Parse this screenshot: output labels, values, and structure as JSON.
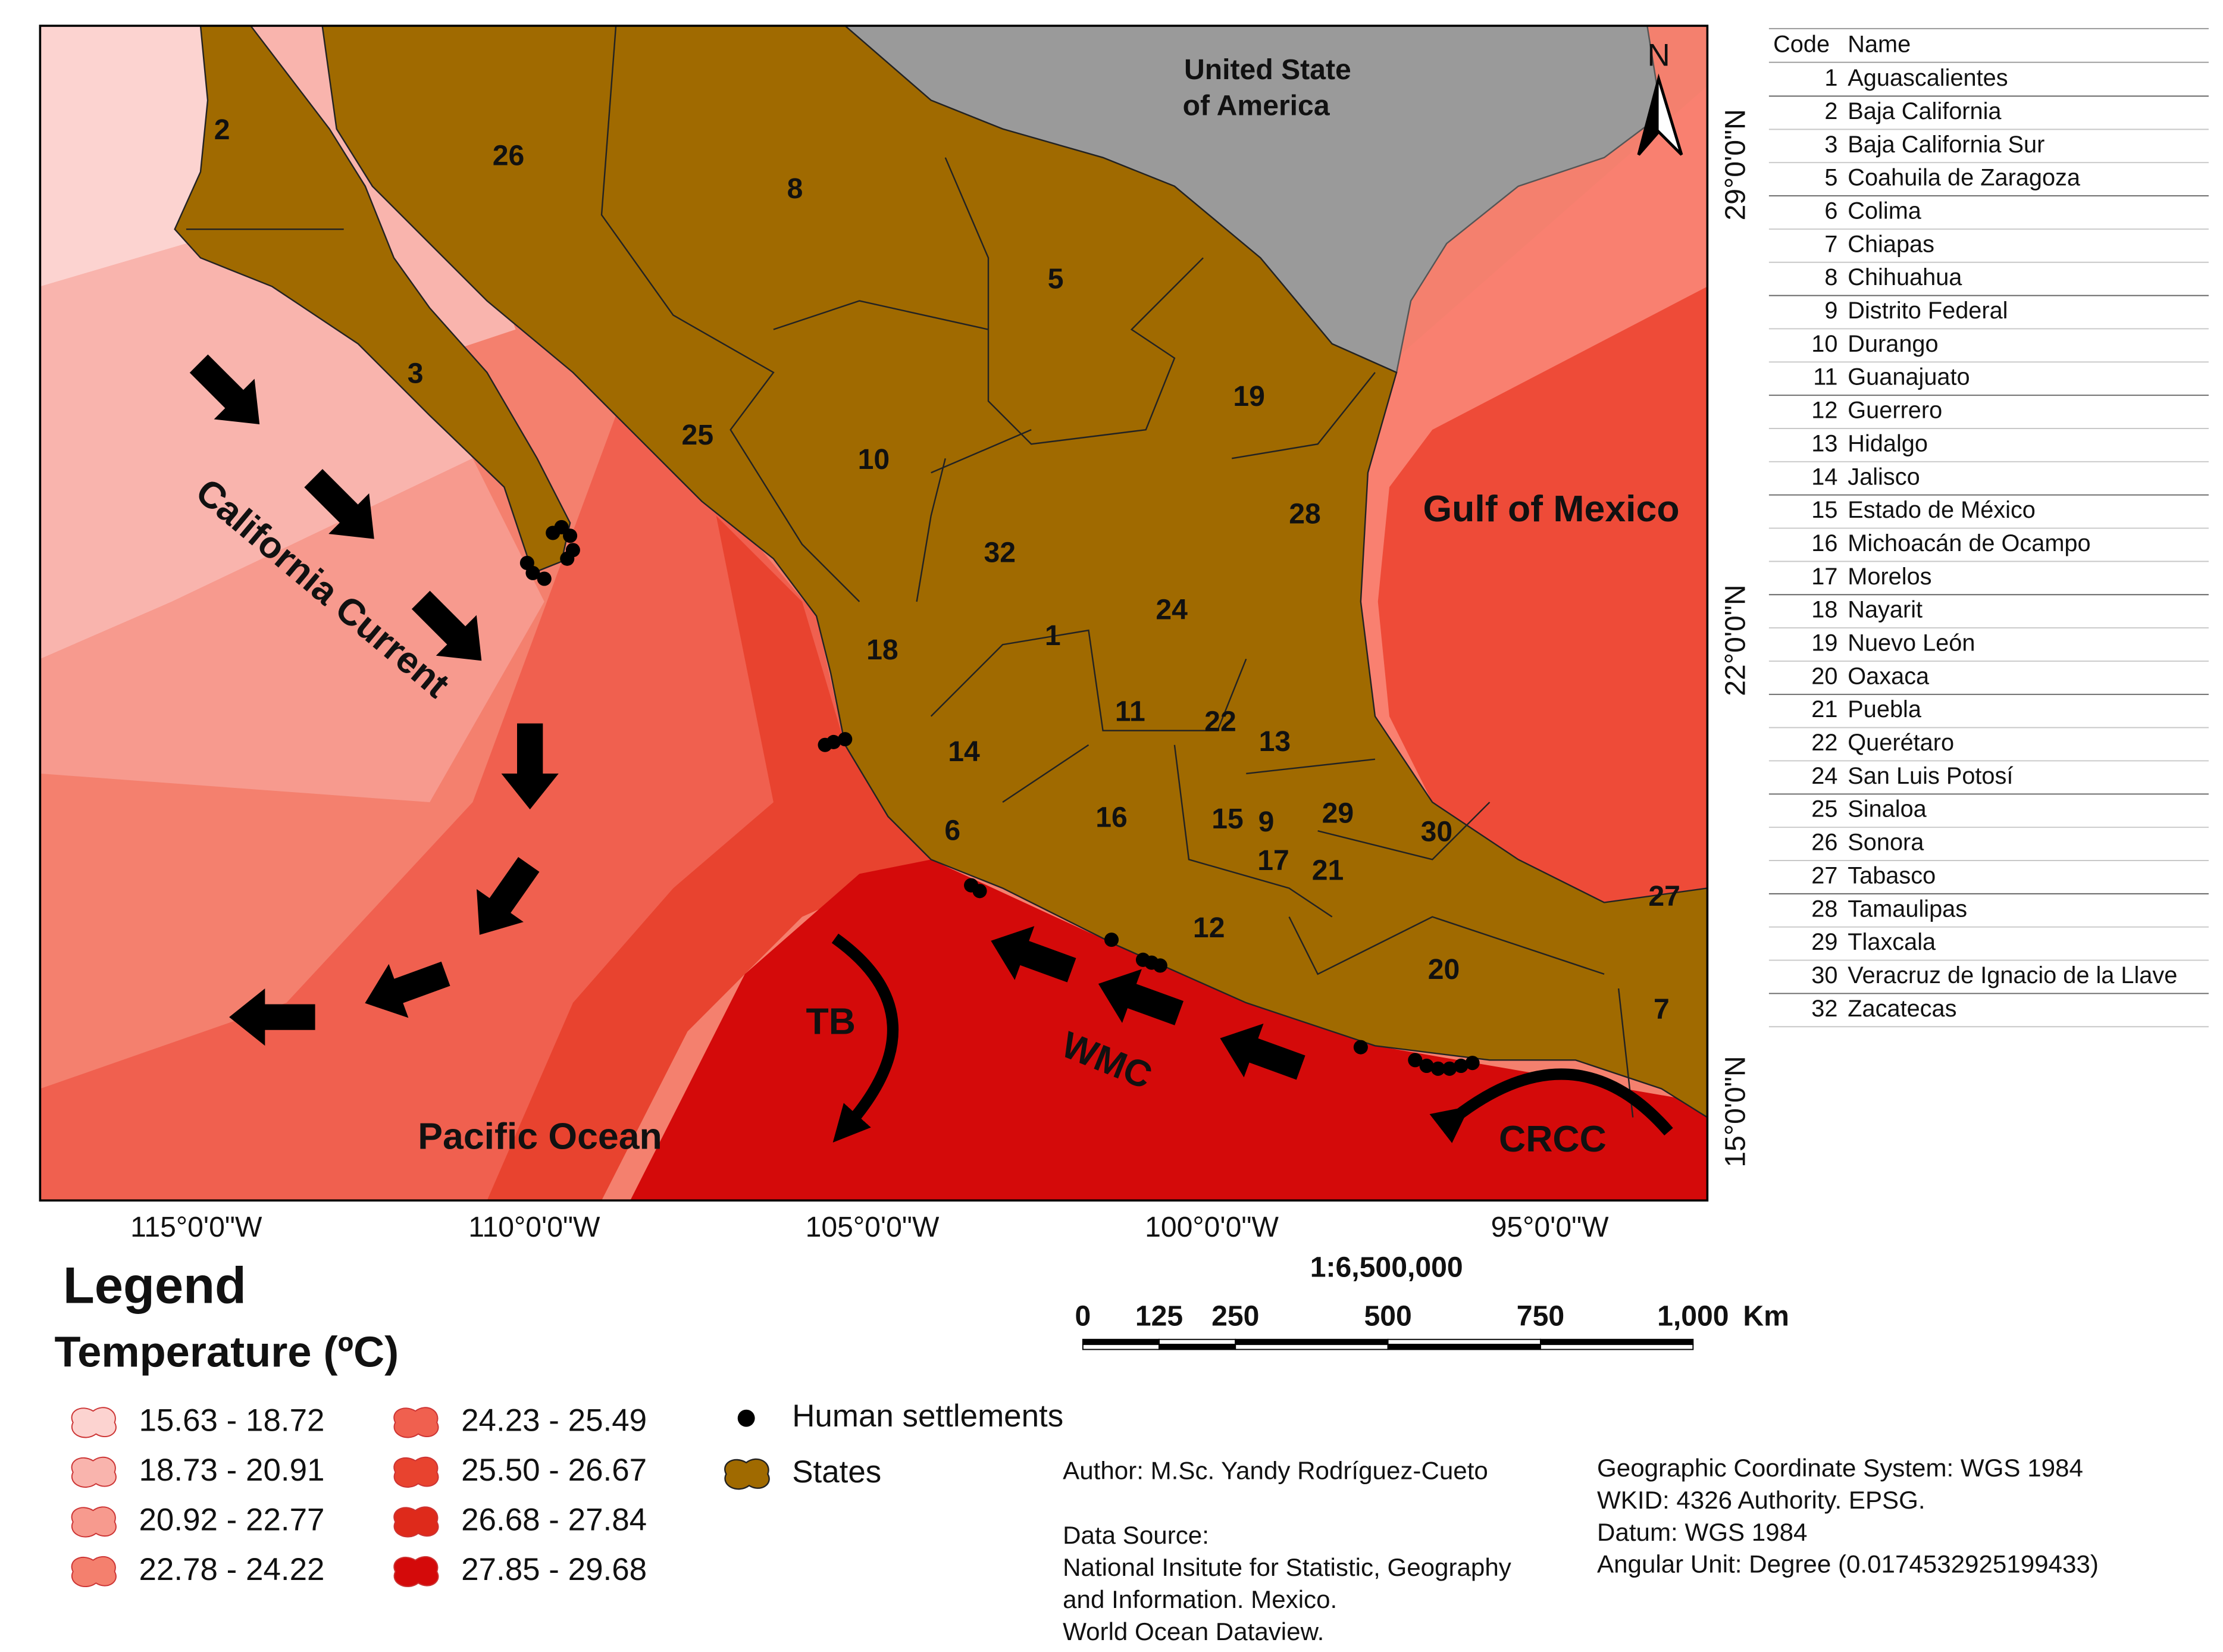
{
  "map": {
    "state_labels": [
      2,
      26,
      8,
      5,
      19,
      3,
      25,
      10,
      28,
      32,
      24,
      1,
      18,
      11,
      22,
      13,
      14,
      16,
      15,
      9,
      29,
      30,
      17,
      21,
      6,
      12,
      27,
      20,
      7
    ],
    "country_label": [
      "United State",
      "of America"
    ],
    "sea_labels": [
      "Gulf of Mexico",
      "Pacific Ocean"
    ],
    "current_labels": [
      "California Current",
      "TB",
      "WMC",
      "CRCC"
    ],
    "north": "N",
    "longitude_labels": [
      "115°0'0\"W",
      "110°0'0\"W",
      "105°0'0\"W",
      "100°0'0\"W",
      "95°0'0\"W"
    ],
    "latitude_labels": [
      "29°0'0\"N",
      "22°0'0\"N",
      "15°0'0\"N"
    ],
    "scale": {
      "ratio": "1:6,500,000",
      "ticks": [
        0,
        125,
        250,
        500,
        750,
        {
          "value": 1000,
          "label": "1,000"
        }
      ],
      "unit": "Km"
    }
  },
  "legend": {
    "title": "Legend",
    "subtitle": "Temperature (ºC)",
    "classes": [
      {
        "label": "15.63 - 18.72",
        "color": "#fcd3d0"
      },
      {
        "label": "18.73 - 20.91",
        "color": "#f9b4ad"
      },
      {
        "label": "20.92 - 22.77",
        "color": "#f79a8e"
      },
      {
        "label": "22.78 - 24.22",
        "color": "#f4806e"
      },
      {
        "label": "24.23 - 25.49",
        "color": "#f0604f"
      },
      {
        "label": "25.50 - 26.67",
        "color": "#e8432f"
      },
      {
        "label": "26.68 - 27.84",
        "color": "#de2a1b"
      },
      {
        "label": "27.85 - 29.68",
        "color": "#d40a0a"
      }
    ],
    "symbols": [
      "Human settlements",
      "States"
    ]
  },
  "credits": {
    "author": "Author: M.Sc. Yandy Rodríguez-Cueto",
    "data_source": [
      "Data Source:",
      "National Insitute for Statistic, Geography",
      "and Information. Mexico.",
      "World Ocean Dataview."
    ],
    "coordinate_system": [
      "Geographic Coordinate System: WGS 1984",
      "WKID: 4326 Authority. EPSG.",
      "Datum: WGS 1984",
      "Angular Unit: Degree (0.0174532925199433)"
    ]
  },
  "table": {
    "header": [
      "Code",
      "Name"
    ],
    "rows": [
      [
        1,
        "Aguascalientes"
      ],
      [
        2,
        "Baja California"
      ],
      [
        3,
        "Baja California Sur"
      ],
      [
        5,
        "Coahuila de Zaragoza"
      ],
      [
        6,
        "Colima"
      ],
      [
        7,
        "Chiapas"
      ],
      [
        8,
        "Chihuahua"
      ],
      [
        9,
        "Distrito Federal"
      ],
      [
        10,
        "Durango"
      ],
      [
        11,
        "Guanajuato"
      ],
      [
        12,
        "Guerrero"
      ],
      [
        13,
        "Hidalgo"
      ],
      [
        14,
        "Jalisco"
      ],
      [
        15,
        "Estado de México"
      ],
      [
        16,
        "Michoacán de Ocampo"
      ],
      [
        17,
        "Morelos"
      ],
      [
        18,
        "Nayarit"
      ],
      [
        19,
        "Nuevo León"
      ],
      [
        20,
        "Oaxaca"
      ],
      [
        21,
        "Puebla"
      ],
      [
        22,
        "Querétaro"
      ],
      [
        24,
        "San Luis Potosí"
      ],
      [
        25,
        "Sinaloa"
      ],
      [
        26,
        "Sonora"
      ],
      [
        27,
        "Tabasco"
      ],
      [
        28,
        "Tamaulipas"
      ],
      [
        29,
        "Tlaxcala"
      ],
      [
        30,
        "Veracruz de Ignacio de la Llave"
      ],
      [
        32,
        "Zacatecas"
      ]
    ]
  }
}
